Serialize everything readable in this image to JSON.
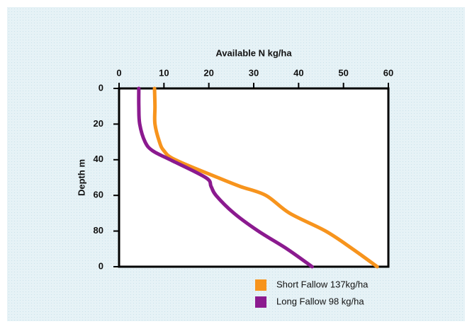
{
  "chart_data": {
    "type": "line",
    "x_label": "Available N kg/ha",
    "y_label": "Depth m",
    "y": [
      0,
      10,
      20,
      30,
      35,
      40,
      50,
      55,
      60,
      70,
      80,
      90,
      100
    ],
    "series": [
      {
        "name": "Short Fallow 137kg/ha",
        "color": "#f7941d",
        "values": [
          7.9,
          8,
          8,
          9,
          10,
          12.5,
          22,
          27,
          32.7,
          38,
          46,
          52,
          57.5
        ]
      },
      {
        "name": "Long Fallow 98 kg/ha",
        "color": "#8b1a8f",
        "values": [
          4.4,
          4.4,
          4.6,
          5.8,
          7.5,
          11.4,
          19.3,
          20.5,
          21.6,
          25.6,
          31,
          37.4,
          43
        ]
      }
    ],
    "xlim": [
      0,
      60
    ],
    "xticks": [
      0,
      10,
      20,
      30,
      40,
      50,
      60
    ],
    "ylim": [
      0,
      100
    ],
    "yticks": [
      0,
      20,
      40,
      60,
      80,
      {
        "value": 100,
        "label": "0"
      }
    ],
    "y_inverted": true,
    "legend": "bottom-right"
  }
}
